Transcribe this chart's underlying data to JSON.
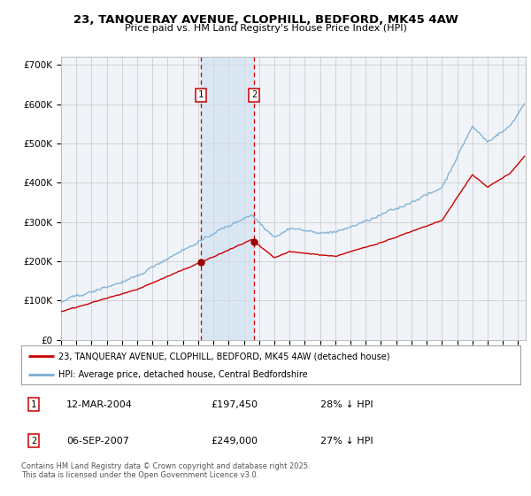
{
  "title": "23, TANQUERAY AVENUE, CLOPHILL, BEDFORD, MK45 4AW",
  "subtitle": "Price paid vs. HM Land Registry's House Price Index (HPI)",
  "ylabel_ticks": [
    "£0",
    "£100K",
    "£200K",
    "£300K",
    "£400K",
    "£500K",
    "£600K",
    "£700K"
  ],
  "ytick_values": [
    0,
    100000,
    200000,
    300000,
    400000,
    500000,
    600000,
    700000
  ],
  "ylim": [
    0,
    720000
  ],
  "xlim_start": 1995.0,
  "xlim_end": 2025.5,
  "line1_color": "#cc0000",
  "line2_color": "#7aadd4",
  "marker_color": "#990000",
  "sale1_x": 2004.19,
  "sale1_y": 197450,
  "sale2_x": 2007.67,
  "sale2_y": 249000,
  "sale1_label": "1",
  "sale2_label": "2",
  "sale1_date": "12-MAR-2004",
  "sale1_price": "£197,450",
  "sale1_hpi": "28% ↓ HPI",
  "sale2_date": "06-SEP-2007",
  "sale2_price": "£249,000",
  "sale2_hpi": "27% ↓ HPI",
  "legend_line1": "23, TANQUERAY AVENUE, CLOPHILL, BEDFORD, MK45 4AW (detached house)",
  "legend_line2": "HPI: Average price, detached house, Central Bedfordshire",
  "footer": "Contains HM Land Registry data © Crown copyright and database right 2025.\nThis data is licensed under the Open Government Licence v3.0.",
  "background_color": "#f0f4f8",
  "grid_color": "#cccccc",
  "shade_color": "#ccdff0",
  "fig_width": 6.0,
  "fig_height": 5.6,
  "dpi": 100
}
